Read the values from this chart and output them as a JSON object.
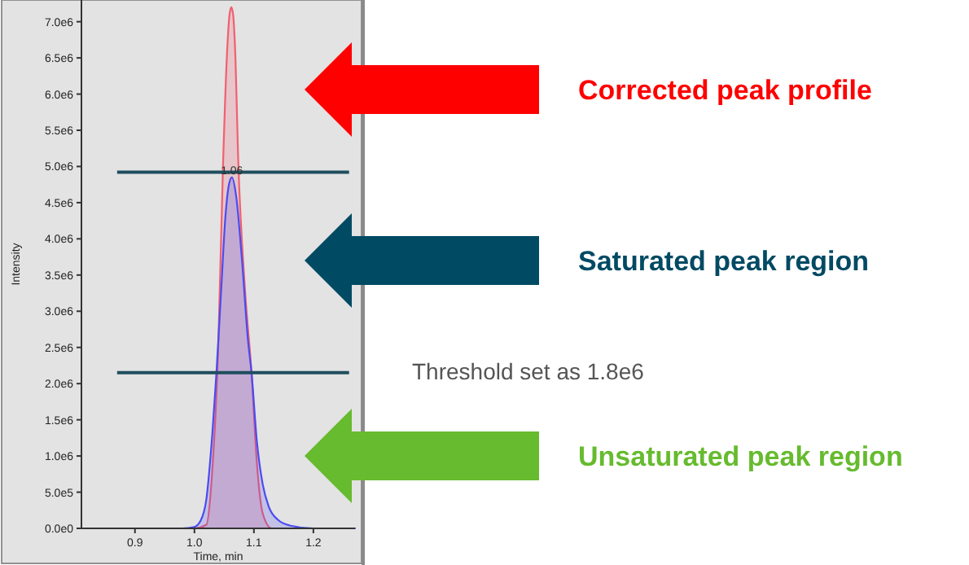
{
  "chart_data": {
    "type": "area",
    "xlabel": "Time, min",
    "ylabel": "Intensity",
    "xlim": [
      0.81,
      1.27
    ],
    "ylim": [
      0,
      7300000
    ],
    "xticks": [
      0.9,
      {
        "value": 1.0,
        "label": "1.0"
      },
      1.1,
      1.2
    ],
    "yticks": [
      {
        "value": 0,
        "label": "0.0e0"
      },
      {
        "value": 500000,
        "label": "5.0e5"
      },
      {
        "value": 1000000,
        "label": "1.0e6"
      },
      {
        "value": 1500000,
        "label": "1.5e6"
      },
      {
        "value": 2000000,
        "label": "2.0e6"
      },
      {
        "value": 2500000,
        "label": "2.5e6"
      },
      {
        "value": 3000000,
        "label": "3.0e6"
      },
      {
        "value": 3500000,
        "label": "3.5e6"
      },
      {
        "value": 4000000,
        "label": "4.0e6"
      },
      {
        "value": 4500000,
        "label": "4.5e6"
      },
      {
        "value": 5000000,
        "label": "5.0e6"
      },
      {
        "value": 5500000,
        "label": "5.5e6"
      },
      {
        "value": 6000000,
        "label": "6.0e6"
      },
      {
        "value": 6500000,
        "label": "6.5e6"
      },
      {
        "value": 7000000,
        "label": "7.0e6"
      }
    ],
    "series": [
      {
        "color": "#f06070",
        "x": [
          0.81,
          1.0,
          1.02,
          1.03,
          1.04,
          1.048,
          1.055,
          1.059,
          1.062,
          1.065,
          1.068,
          1.074,
          1.085,
          1.096,
          1.105,
          1.115,
          1.13,
          1.27
        ],
        "values": [
          0,
          0,
          50000,
          800000,
          2500000,
          5000000,
          6600000,
          7100000,
          7200000,
          7100000,
          6700000,
          5000000,
          3300000,
          2150000,
          900000,
          200000,
          0,
          0
        ]
      },
      {
        "color": "#4b4bf0",
        "x": [
          0.81,
          0.98,
          1.0,
          1.01,
          1.02,
          1.03,
          1.037,
          1.045,
          1.052,
          1.058,
          1.063,
          1.07,
          1.08,
          1.09,
          1.096,
          1.105,
          1.115,
          1.125,
          1.14,
          1.16,
          1.2,
          1.27
        ],
        "values": [
          0,
          0,
          20000,
          100000,
          400000,
          1300000,
          2150000,
          3300000,
          4300000,
          4750000,
          4850000,
          4600000,
          3700000,
          2600000,
          2150000,
          1200000,
          600000,
          300000,
          120000,
          40000,
          0,
          0
        ]
      }
    ],
    "ref_lines": [
      {
        "axis": "y",
        "value": 4920000,
        "color": "#1f4e5f"
      },
      {
        "axis": "y",
        "value": 2150000,
        "color": "#1f4e5f"
      }
    ],
    "annotations": [
      {
        "text": "1.06",
        "x": 1.063,
        "y": 4850000
      },
      "Corrected peak profile",
      "Saturated peak region",
      "Threshold set as 1.8e6",
      "Unsaturated peak region"
    ]
  }
}
